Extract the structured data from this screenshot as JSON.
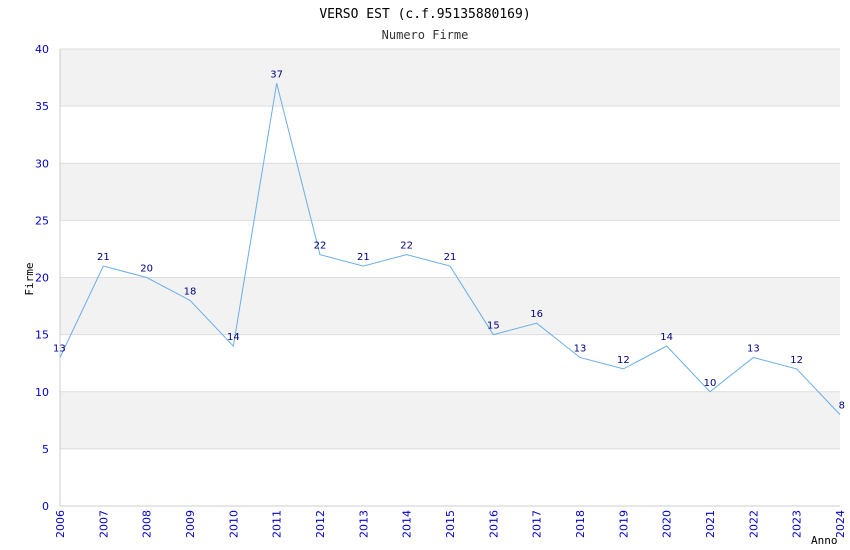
{
  "chart_data": {
    "type": "line",
    "title": "VERSO EST (c.f.95135880169)",
    "subtitle": "Numero Firme",
    "xlabel": "Anno",
    "ylabel": "Firme",
    "ylim": [
      0,
      40
    ],
    "yticks": [
      0,
      5,
      10,
      15,
      20,
      25,
      30,
      35,
      40
    ],
    "grid": true,
    "colors": {
      "line": "#6aaee8",
      "band": "#f2f2f2",
      "tick_text": "#0000cc",
      "label_text": "#000080"
    },
    "x": [
      "2006",
      "2007",
      "2008",
      "2009",
      "2010",
      "2011",
      "2012",
      "2013",
      "2014",
      "2015",
      "2016",
      "2017",
      "2018",
      "2019",
      "2020",
      "2021",
      "2022",
      "2023",
      "2024"
    ],
    "values": [
      13,
      21,
      20,
      18,
      14,
      37,
      22,
      21,
      22,
      21,
      15,
      16,
      13,
      12,
      14,
      10,
      13,
      12,
      8
    ]
  }
}
